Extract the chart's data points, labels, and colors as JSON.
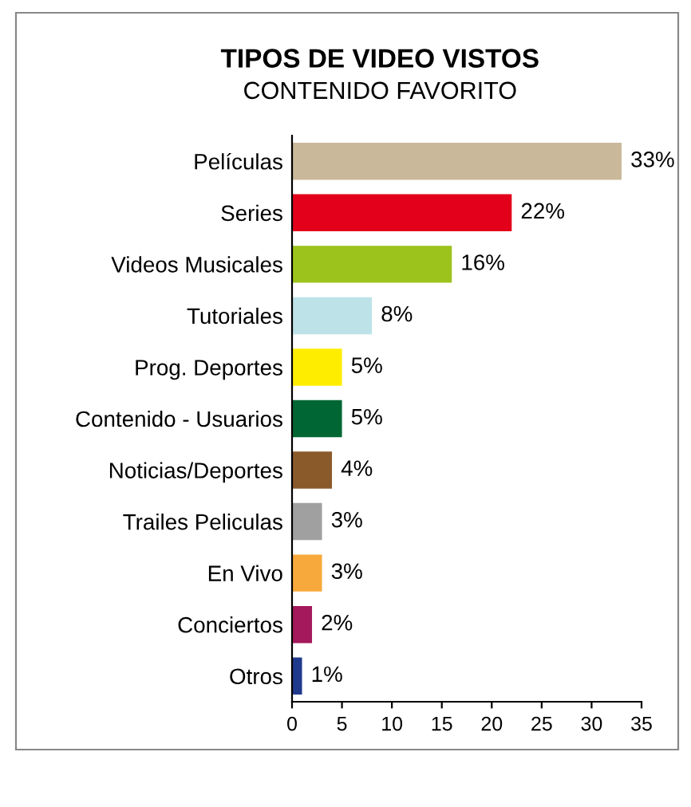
{
  "chart_data": {
    "type": "bar",
    "orientation": "horizontal",
    "title": "TIPOS DE VIDEO VISTOS",
    "subtitle": "CONTENIDO FAVORITO",
    "categories": [
      "Películas",
      "Series",
      "Videos Musicales",
      "Tutoriales",
      "Prog. Deportes",
      "Contenido - Usuarios",
      "Noticias/Deportes",
      "Trailes Peliculas",
      "En Vivo",
      "Conciertos",
      "Otros"
    ],
    "values": [
      33,
      22,
      16,
      8,
      5,
      5,
      4,
      3,
      3,
      2,
      1
    ],
    "value_labels": [
      "33%",
      "22%",
      "16%",
      "8%",
      "5%",
      "5%",
      "4%",
      "3%",
      "3%",
      "2%",
      "1%"
    ],
    "colors": [
      "#c9b99a",
      "#e2001a",
      "#9bc31c",
      "#bde3e8",
      "#ffed00",
      "#006633",
      "#8b5a2b",
      "#a0a0a0",
      "#f7a93b",
      "#a3195b",
      "#1f3a8c"
    ],
    "xlim": [
      0,
      35
    ],
    "xticks": [
      0,
      5,
      10,
      15,
      20,
      25,
      30,
      35
    ],
    "grid": false,
    "legend": false
  }
}
